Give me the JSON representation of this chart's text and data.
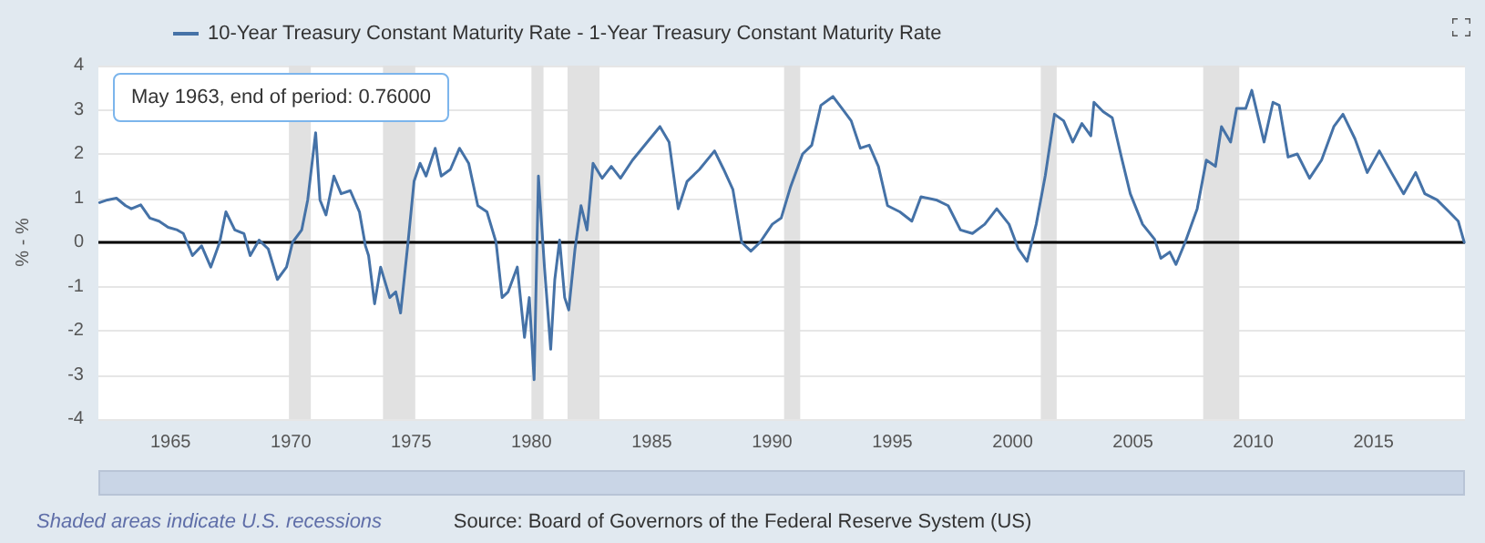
{
  "chart_data": {
    "type": "line",
    "ylabel": "% - %",
    "series": [
      {
        "name": "10-Year Treasury Constant Maturity Rate - 1-Year Treasury Constant Maturity Rate",
        "color": "#4572a7",
        "x": [
          1962.05,
          1962.38,
          1962.75,
          1963.13,
          1963.37,
          1963.76,
          1964.14,
          1964.52,
          1964.9,
          1965.28,
          1965.53,
          1965.91,
          1966.29,
          1966.67,
          1967.04,
          1967.3,
          1967.67,
          1968.05,
          1968.31,
          1968.68,
          1969.06,
          1969.44,
          1969.82,
          1970.07,
          1970.45,
          1970.7,
          1971.03,
          1971.21,
          1971.46,
          1971.79,
          1972.09,
          1972.47,
          1972.85,
          1973.1,
          1973.23,
          1973.48,
          1973.73,
          1974.11,
          1974.36,
          1974.56,
          1974.87,
          1975.12,
          1975.37,
          1975.62,
          1976.0,
          1976.25,
          1976.63,
          1977.01,
          1977.39,
          1977.77,
          1978.15,
          1978.53,
          1978.78,
          1979.03,
          1979.41,
          1979.71,
          1979.91,
          1980.11,
          1980.29,
          1980.54,
          1980.8,
          1980.97,
          1981.17,
          1981.38,
          1981.55,
          1981.81,
          1982.06,
          1982.31,
          1982.56,
          1982.94,
          1983.32,
          1983.7,
          1984.2,
          1984.71,
          1985.34,
          1985.72,
          1986.1,
          1986.47,
          1986.98,
          1987.61,
          1987.99,
          1988.37,
          1988.74,
          1989.12,
          1989.5,
          1990.01,
          1990.38,
          1990.76,
          1991.27,
          1991.65,
          1992.03,
          1992.53,
          1992.91,
          1993.29,
          1993.67,
          1994.04,
          1994.42,
          1994.8,
          1995.31,
          1995.81,
          1996.19,
          1996.82,
          1997.32,
          1997.83,
          1998.33,
          1998.84,
          1999.34,
          1999.85,
          2000.23,
          2000.6,
          2000.98,
          2001.36,
          2001.74,
          2002.12,
          2002.5,
          2002.88,
          2003.25,
          2003.38,
          2003.76,
          2004.14,
          2004.52,
          2004.89,
          2005.4,
          2005.9,
          2006.16,
          2006.53,
          2006.79,
          2007.17,
          2007.67,
          2008.05,
          2008.43,
          2008.68,
          2009.06,
          2009.31,
          2009.69,
          2009.94,
          2010.45,
          2010.82,
          2011.08,
          2011.45,
          2011.83,
          2012.34,
          2012.84,
          2013.35,
          2013.73,
          2014.23,
          2014.74,
          2015.24,
          2015.74,
          2016.25,
          2016.75,
          2017.13,
          2017.64,
          2018.14,
          2018.52,
          2018.77
        ],
        "values": [
          0.9,
          0.96,
          1.0,
          0.83,
          0.76,
          0.85,
          0.55,
          0.48,
          0.34,
          0.28,
          0.2,
          -0.3,
          -0.08,
          -0.56,
          0,
          0.69,
          0.28,
          0.2,
          -0.3,
          0.05,
          -0.15,
          -0.84,
          -0.56,
          0,
          0.28,
          0.96,
          2.48,
          0.96,
          0.62,
          1.5,
          1.1,
          1.17,
          0.69,
          -0.08,
          -0.3,
          -1.39,
          -0.56,
          -1.25,
          -1.12,
          -1.6,
          0,
          1.38,
          1.79,
          1.5,
          2.13,
          1.5,
          1.65,
          2.13,
          1.79,
          0.83,
          0.69,
          0,
          -1.25,
          -1.12,
          -0.56,
          -2.15,
          -1.25,
          -3.11,
          1.5,
          -0.56,
          -2.42,
          -0.84,
          0.05,
          -1.25,
          -1.53,
          -0.15,
          0.83,
          0.28,
          1.79,
          1.45,
          1.72,
          1.45,
          1.86,
          2.2,
          2.62,
          2.27,
          0.76,
          1.38,
          1.65,
          2.07,
          1.65,
          1.2,
          0,
          -0.2,
          0,
          0.41,
          0.55,
          1.24,
          2.0,
          2.2,
          3.1,
          3.3,
          3.03,
          2.75,
          2.13,
          2.2,
          1.72,
          0.83,
          0.69,
          0.48,
          1.03,
          0.96,
          0.83,
          0.28,
          0.2,
          0.41,
          0.76,
          0.41,
          -0.14,
          -0.43,
          0.41,
          1.52,
          2.9,
          2.75,
          2.27,
          2.69,
          2.41,
          3.17,
          2.96,
          2.82,
          1.93,
          1.1,
          0.41,
          0.07,
          -0.36,
          -0.22,
          -0.5,
          0,
          0.76,
          1.86,
          1.72,
          2.62,
          2.27,
          3.03,
          3.03,
          3.44,
          2.27,
          3.17,
          3.1,
          1.93,
          2.0,
          1.45,
          1.86,
          2.62,
          2.9,
          2.34,
          1.58,
          2.07,
          1.58,
          1.1,
          1.58,
          1.1,
          0.96,
          0.69,
          0.48,
          0
        ]
      }
    ],
    "xlim": [
      1962,
      2018.8
    ],
    "xticks": [
      1965,
      1970,
      1975,
      1980,
      1985,
      1990,
      1995,
      2000,
      2005,
      2010,
      2015
    ],
    "ylim": [
      -4,
      4
    ],
    "yticks": [
      -4,
      -3,
      -2,
      -1,
      0,
      1,
      2,
      3,
      4
    ],
    "grid": "y",
    "legend": "top left",
    "marker": "none",
    "line_style": "solid",
    "ref_lines": [
      {
        "axis": "y",
        "value": 0,
        "color": "#000000"
      }
    ],
    "bands": [
      {
        "axis": "x",
        "from": 1969.92,
        "to": 1970.83,
        "color": "#e1e1e1"
      },
      {
        "axis": "x",
        "from": 1973.83,
        "to": 1975.17,
        "color": "#e1e1e1"
      },
      {
        "axis": "x",
        "from": 1980.0,
        "to": 1980.5,
        "color": "#e1e1e1"
      },
      {
        "axis": "x",
        "from": 1981.5,
        "to": 1982.83,
        "color": "#e1e1e1"
      },
      {
        "axis": "x",
        "from": 1990.5,
        "to": 1991.17,
        "color": "#e1e1e1"
      },
      {
        "axis": "x",
        "from": 2001.17,
        "to": 2001.83,
        "color": "#e1e1e1"
      },
      {
        "axis": "x",
        "from": 2007.92,
        "to": 2009.42,
        "color": "#e1e1e1"
      }
    ],
    "annotations": [
      "May 1963, end of period: 0.76000",
      "Shaded areas indicate U.S. recessions",
      "Source: Board of Governors of the Federal Reserve System (US)"
    ]
  }
}
